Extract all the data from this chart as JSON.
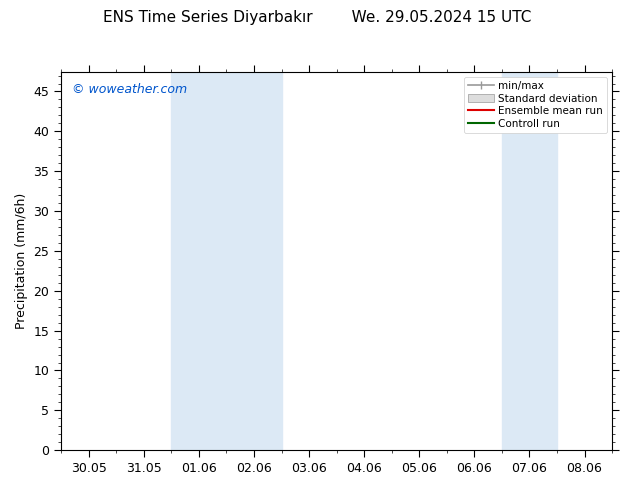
{
  "title": "ENS Time Series Diyarbakır        We. 29.05.2024 15 UTC",
  "ylabel": "Precipitation (mm/6h)",
  "watermark": "© woweather.com",
  "watermark_color": "#0055cc",
  "ylim": [
    0,
    47.5
  ],
  "yticks": [
    0,
    5,
    10,
    15,
    20,
    25,
    30,
    35,
    40,
    45
  ],
  "xtick_labels": [
    "30.05",
    "31.05",
    "01.06",
    "02.06",
    "03.06",
    "04.06",
    "05.06",
    "06.06",
    "07.06",
    "08.06"
  ],
  "x_positions": [
    0,
    1,
    2,
    3,
    4,
    5,
    6,
    7,
    8,
    9
  ],
  "xlim": [
    -0.5,
    9.5
  ],
  "background_color": "#ffffff",
  "plot_bg_color": "#ffffff",
  "shaded_bands": [
    {
      "x_start": 1.5,
      "x_end": 2.5,
      "color": "#dce9f5"
    },
    {
      "x_start": 2.5,
      "x_end": 3.5,
      "color": "#dce9f5"
    },
    {
      "x_start": 7.5,
      "x_end": 8.5,
      "color": "#dce9f5"
    }
  ],
  "legend_labels": [
    "min/max",
    "Standard deviation",
    "Ensemble mean run",
    "Controll run"
  ],
  "title_fontsize": 11,
  "tick_fontsize": 9,
  "ylabel_fontsize": 9,
  "watermark_fontsize": 9
}
